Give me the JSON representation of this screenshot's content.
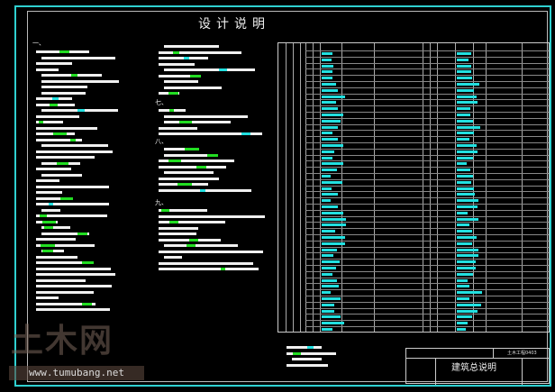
{
  "drawing": {
    "title": "设计说明",
    "sections": [
      "一、",
      "七、",
      "八、",
      "九、"
    ],
    "title_block": {
      "drawing_name": "建筑总说明",
      "code": "土木工程0403"
    },
    "watermark": {
      "logo_text": "土木网",
      "url": "www.tumubang.net"
    },
    "colors": {
      "frame": "#2fd0d0",
      "text": "#ffffff",
      "highlight_green": "#22dd22",
      "highlight_cyan": "#22e0e0"
    }
  }
}
